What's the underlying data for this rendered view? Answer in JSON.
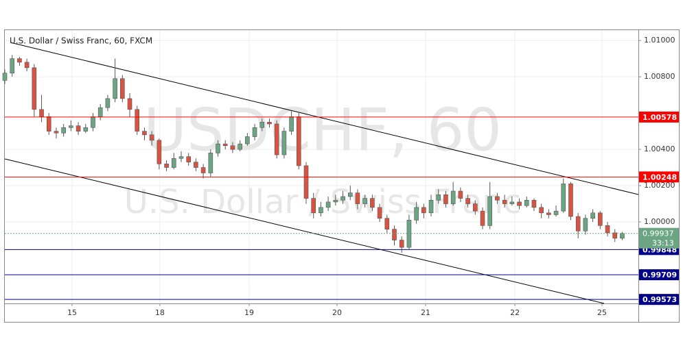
{
  "chart_data": {
    "type": "candlestick",
    "title": "U.S. Dollar / Swiss Franc, 60, FXCM",
    "watermark": [
      "USDCHF, 60",
      "U.S. Dollar / Swiss Franc"
    ],
    "up_color": "#6ba583",
    "down_color": "#d75442",
    "grid": true,
    "x": [
      0,
      2,
      4,
      6,
      8,
      10,
      12,
      14,
      16,
      18,
      20,
      22,
      24,
      26,
      28,
      30,
      32,
      34,
      36,
      38,
      40,
      42,
      44,
      46,
      48,
      50,
      52,
      54,
      56,
      58,
      60,
      62,
      64,
      66,
      68,
      70,
      72,
      74,
      76,
      78,
      80,
      82,
      84,
      86,
      88,
      90,
      92,
      94,
      96,
      98,
      100,
      102,
      104,
      106,
      108,
      110,
      112,
      114,
      116,
      118,
      120,
      122,
      124,
      126,
      128,
      130,
      132,
      134,
      136,
      138,
      140,
      142,
      144,
      146,
      148,
      150,
      152,
      154,
      156,
      158,
      160,
      162,
      164,
      166,
      168
    ],
    "open": [
      1.0078,
      1.0082,
      1.009,
      1.0088,
      1.0085,
      1.0062,
      1.0058,
      1.005,
      1.0049,
      1.0052,
      1.0053,
      1.005,
      1.0052,
      1.0058,
      1.0063,
      1.0068,
      1.0079,
      1.0068,
      1.0062,
      1.005,
      1.0048,
      1.0045,
      1.0032,
      1.003,
      1.0035,
      1.0036,
      1.0033,
      1.003,
      1.0027,
      1.0038,
      1.0043,
      1.0042,
      1.004,
      1.0043,
      1.0047,
      1.0052,
      1.0055,
      1.0054,
      1.0037,
      1.005,
      1.0058,
      1.0031,
      1.0013,
      1.0005,
      1.0008,
      1.0011,
      1.0012,
      1.0014,
      1.0016,
      1.001,
      1.0013,
      1.0008,
      1.0002,
      0.9996,
      0.999,
      0.9986,
      1.0001,
      1.0008,
      1.0005,
      1.0012,
      1.0015,
      1.001,
      1.0017,
      1.0013,
      1.001,
      1.0006,
      0.9998,
      1.0014,
      1.0012,
      1.001,
      1.0011,
      1.0009,
      1.0012,
      1.0008,
      1.0005,
      1.0004,
      1.0006,
      1.0021,
      1.0003,
      0.9995,
      1.0002,
      1.0005,
      0.9998,
      0.9994,
      0.9991
    ],
    "high": [
      1.0084,
      1.0092,
      1.0091,
      1.009,
      1.0087,
      1.007,
      1.006,
      1.0052,
      1.0054,
      1.0056,
      1.0055,
      1.0054,
      1.006,
      1.0065,
      1.007,
      1.009,
      1.0081,
      1.0071,
      1.0064,
      1.0052,
      1.005,
      1.0046,
      1.0034,
      1.0038,
      1.0039,
      1.0038,
      1.0035,
      1.0032,
      1.004,
      1.0045,
      1.0045,
      1.0044,
      1.0045,
      1.0049,
      1.0054,
      1.0057,
      1.0057,
      1.0056,
      1.0052,
      1.0061,
      1.006,
      1.0033,
      1.0016,
      1.0011,
      1.0014,
      1.0015,
      1.0017,
      1.002,
      1.0018,
      1.0015,
      1.0015,
      1.001,
      1.0004,
      0.9998,
      0.9992,
      1.0004,
      1.0011,
      1.001,
      1.0015,
      1.0018,
      1.0017,
      1.0022,
      1.0019,
      1.0015,
      1.0012,
      1.0008,
      1.0022,
      1.0016,
      1.0015,
      1.0014,
      1.0013,
      1.0014,
      1.0013,
      1.001,
      1.0007,
      1.0009,
      1.0024,
      1.0022,
      1.0005,
      1.0004,
      1.0007,
      1.0006,
      1.0,
      0.9996,
      0.99945
    ],
    "low": [
      1.0076,
      1.008,
      1.0086,
      1.0083,
      1.0058,
      1.0055,
      1.0048,
      1.0046,
      1.0047,
      1.005,
      1.0048,
      1.0049,
      1.005,
      1.0056,
      1.0061,
      1.0066,
      1.0066,
      1.0058,
      1.0048,
      1.0045,
      1.0042,
      1.0029,
      1.0028,
      1.0029,
      1.0033,
      1.0031,
      1.0028,
      1.0024,
      1.0025,
      1.0036,
      1.004,
      1.0038,
      1.0039,
      1.0042,
      1.0045,
      1.005,
      1.0052,
      1.0035,
      1.0035,
      1.0048,
      1.0029,
      1.001,
      1.0002,
      1.0003,
      1.0006,
      1.0009,
      1.001,
      1.0012,
      1.0007,
      1.0008,
      1.0006,
      1.0,
      0.9994,
      0.9987,
      0.9983,
      0.9985,
      0.9999,
      1.0002,
      1.0003,
      1.001,
      1.0008,
      1.0009,
      1.0011,
      1.0008,
      1.0004,
      0.9996,
      0.9996,
      1.001,
      1.0008,
      1.0009,
      1.0007,
      1.0008,
      1.0006,
      1.0002,
      1.0002,
      1.0003,
      1.0005,
      1.0001,
      0.9991,
      0.9993,
      1.0,
      0.9996,
      0.9992,
      0.9989,
      0.999
    ],
    "close": [
      1.0082,
      1.009,
      1.0088,
      1.0085,
      1.0062,
      1.0058,
      1.005,
      1.0049,
      1.0052,
      1.0053,
      1.005,
      1.0052,
      1.0058,
      1.0063,
      1.0068,
      1.0079,
      1.0068,
      1.0062,
      1.005,
      1.0048,
      1.0045,
      1.0032,
      1.003,
      1.0035,
      1.0036,
      1.0033,
      1.003,
      1.0027,
      1.0038,
      1.0043,
      1.0042,
      1.004,
      1.0043,
      1.0047,
      1.0052,
      1.0055,
      1.0054,
      1.0037,
      1.005,
      1.0058,
      1.0031,
      1.0013,
      1.0005,
      1.0008,
      1.0011,
      1.0012,
      1.0014,
      1.0016,
      1.001,
      1.0013,
      1.0008,
      1.0002,
      0.9996,
      0.999,
      0.9986,
      1.0001,
      1.0008,
      1.0005,
      1.0012,
      1.0015,
      1.001,
      1.0017,
      1.0013,
      1.001,
      1.0006,
      0.9998,
      1.0014,
      1.0012,
      1.001,
      1.0011,
      1.0009,
      1.0012,
      1.0008,
      1.0005,
      1.0004,
      1.0006,
      1.0021,
      1.0003,
      0.9995,
      1.0002,
      1.0005,
      0.9998,
      0.9994,
      0.9991,
      0.99937
    ],
    "xlim": [
      0,
      172.4
    ],
    "xticks": [
      {
        "value": 18.3,
        "label": "15"
      },
      {
        "value": 42.2,
        "label": "18"
      },
      {
        "value": 66.5,
        "label": "19"
      },
      {
        "value": 90.4,
        "label": "20"
      },
      {
        "value": 114.5,
        "label": "21"
      },
      {
        "value": 138.8,
        "label": "22"
      },
      {
        "value": 162.5,
        "label": "25"
      }
    ],
    "ylim": [
      0.99551,
      1.01057
    ],
    "yticks": [
      {
        "value": 1.01,
        "label": "1.01000"
      },
      {
        "value": 1.008,
        "label": "1.00800"
      },
      {
        "value": 1.004,
        "label": "1.00400"
      },
      {
        "value": 1.002,
        "label": "1.00200"
      },
      {
        "value": 1.0,
        "label": "1.00000"
      }
    ],
    "levels": [
      {
        "value": 1.00578,
        "label": "1.00578",
        "color": "#ff0000"
      },
      {
        "value": 1.00248,
        "label": "1.00248",
        "color": "#ff0000"
      },
      {
        "value": 0.99848,
        "label": "0.99848",
        "color": "#00008b"
      },
      {
        "value": 0.99709,
        "label": "0.99709",
        "color": "#00008b"
      },
      {
        "value": 0.99573,
        "label": "0.99573",
        "color": "#00008b"
      }
    ],
    "last_price": {
      "value": 0.99937,
      "label": "0.99937",
      "countdown": "33:13",
      "color": "#6ba583"
    }
  }
}
